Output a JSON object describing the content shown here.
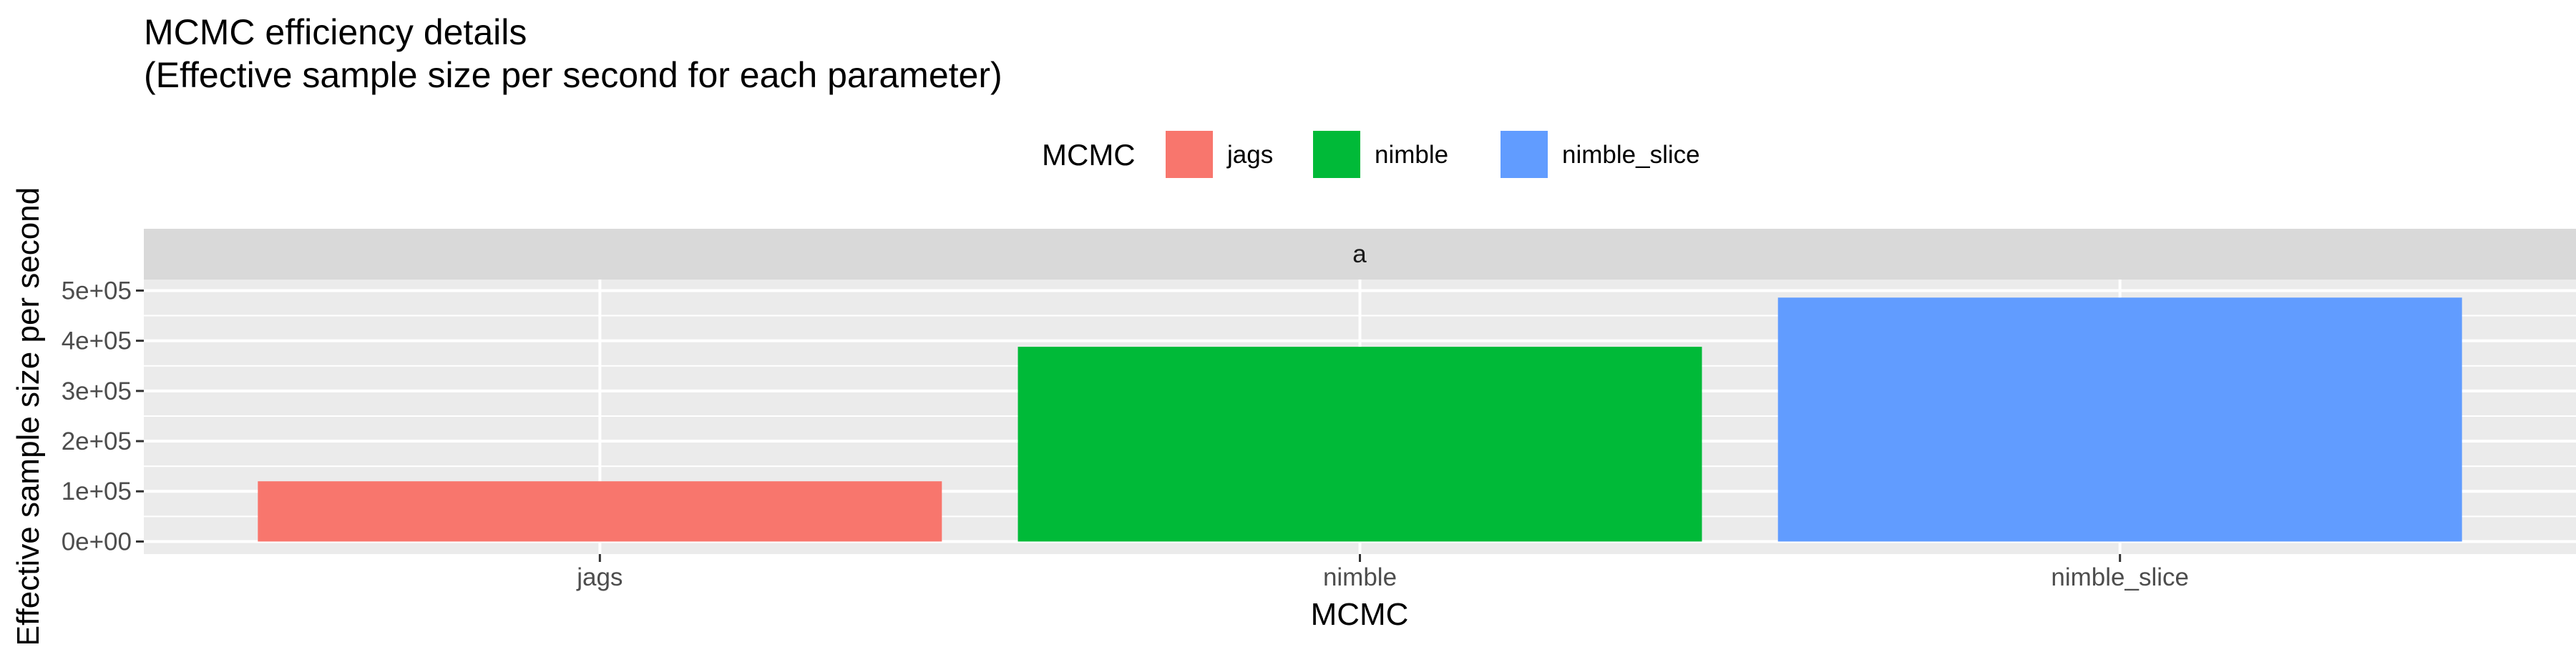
{
  "chart_data": {
    "type": "bar",
    "title": "MCMC efficiency details",
    "subtitle": "(Effective sample size per second for each parameter)",
    "xlabel": "MCMC",
    "ylabel": "Effective sample size per second",
    "facet_label": "a",
    "categories": [
      "jags",
      "nimble",
      "nimble_slice"
    ],
    "values": [
      120000,
      388000,
      486000
    ],
    "ylim": [
      -25000,
      522000
    ],
    "y_ticks": [
      0,
      100000,
      200000,
      300000,
      400000,
      500000
    ],
    "y_tick_labels": [
      "0e+00",
      "1e+05",
      "2e+05",
      "3e+05",
      "4e+05",
      "5e+05"
    ],
    "legend": {
      "title": "MCMC",
      "position": "top",
      "entries": [
        "jags",
        "nimble",
        "nimble_slice"
      ]
    },
    "colors": {
      "jags": "#F8766D",
      "nimble": "#00BA38",
      "nimble_slice": "#619CFF",
      "panel_bg": "#EBEBEB",
      "strip_bg": "#D9D9D9",
      "grid": "#FFFFFF",
      "tick": "#333333"
    },
    "grid": true
  }
}
